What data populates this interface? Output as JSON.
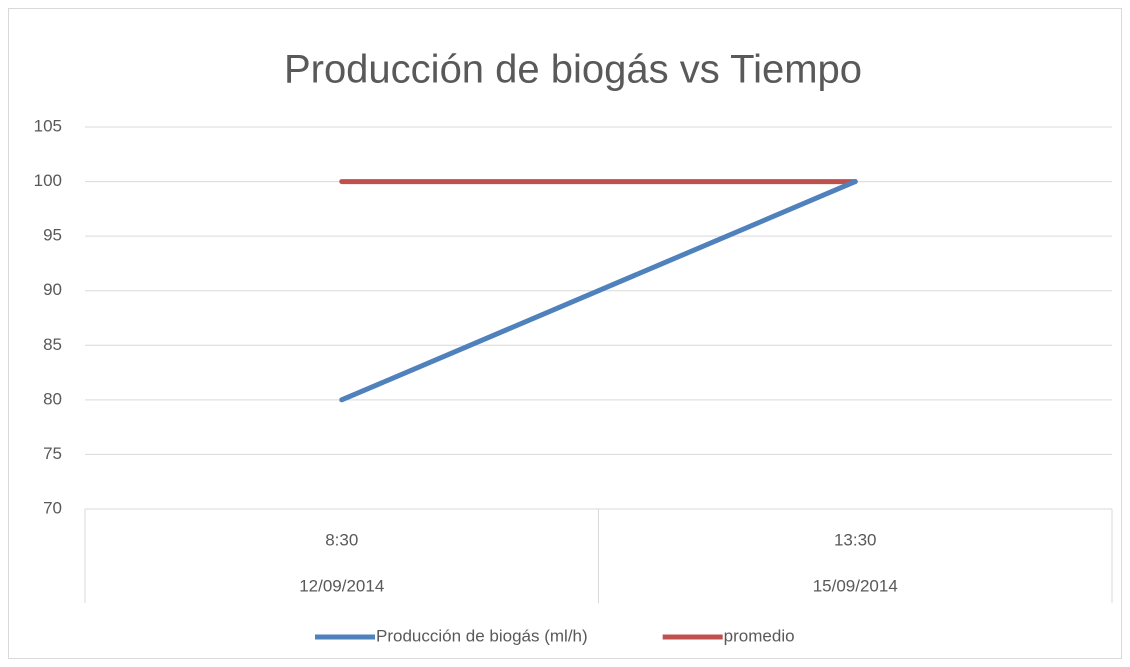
{
  "chart_data": {
    "type": "line",
    "title": "Producción de biogás vs Tiempo",
    "categories": [
      "8:30",
      "13:30"
    ],
    "category_groups": [
      "12/09/2014",
      "15/09/2014"
    ],
    "series": [
      {
        "name": "Producción de biogás (ml/h)",
        "color": "#4f81bd",
        "values": [
          80,
          100
        ]
      },
      {
        "name": "promedio",
        "color": "#c0504d",
        "values": [
          100,
          100
        ]
      }
    ],
    "ylim": [
      70,
      105
    ],
    "yticks": [
      70,
      75,
      80,
      85,
      90,
      95,
      100,
      105
    ],
    "grid": true,
    "legend": "bottom"
  }
}
